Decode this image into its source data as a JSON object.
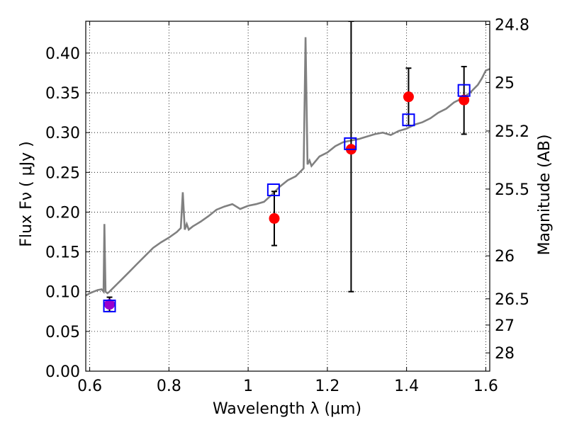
{
  "chart_data": {
    "type": "scatter",
    "title": "",
    "xlabel": "Wavelength  λ (μm)",
    "ylabel": "Flux  Fν  ( μJy )",
    "ylabel_right": "Magnitude (AB)",
    "xlim": [
      0.59,
      1.61
    ],
    "ylim": [
      0.0,
      0.44
    ],
    "grid": true,
    "xticks": [
      {
        "v": 0.6,
        "label": "0.6"
      },
      {
        "v": 0.8,
        "label": "0.8"
      },
      {
        "v": 1.0,
        "label": "1"
      },
      {
        "v": 1.2,
        "label": "1.2"
      },
      {
        "v": 1.4,
        "label": "1.4"
      },
      {
        "v": 1.6,
        "label": "1.6"
      }
    ],
    "yticks": [
      {
        "v": 0.0,
        "label": "0.00"
      },
      {
        "v": 0.05,
        "label": "0.05"
      },
      {
        "v": 0.1,
        "label": "0.10"
      },
      {
        "v": 0.15,
        "label": "0.15"
      },
      {
        "v": 0.2,
        "label": "0.20"
      },
      {
        "v": 0.25,
        "label": "0.25"
      },
      {
        "v": 0.3,
        "label": "0.30"
      },
      {
        "v": 0.35,
        "label": "0.35"
      },
      {
        "v": 0.4,
        "label": "0.40"
      }
    ],
    "right_ticks": [
      {
        "label": "24.8",
        "flux": 0.436
      },
      {
        "label": "25",
        "flux": 0.363
      },
      {
        "label": "25.2",
        "flux": 0.302
      },
      {
        "label": "25.5",
        "flux": 0.229
      },
      {
        "label": "26",
        "flux": 0.145
      },
      {
        "label": "26.5",
        "flux": 0.091
      },
      {
        "label": "27",
        "flux": 0.058
      },
      {
        "label": "28",
        "flux": 0.023
      }
    ],
    "series": [
      {
        "kind": "line",
        "color": "#808080",
        "x": [
          0.59,
          0.6,
          0.61,
          0.62,
          0.63,
          0.635,
          0.637,
          0.64,
          0.645,
          0.65,
          0.66,
          0.67,
          0.68,
          0.7,
          0.72,
          0.74,
          0.76,
          0.78,
          0.8,
          0.82,
          0.83,
          0.835,
          0.84,
          0.845,
          0.85,
          0.86,
          0.87,
          0.88,
          0.9,
          0.92,
          0.94,
          0.96,
          0.98,
          1.0,
          1.02,
          1.04,
          1.06,
          1.08,
          1.1,
          1.12,
          1.13,
          1.14,
          1.145,
          1.15,
          1.155,
          1.16,
          1.18,
          1.2,
          1.22,
          1.24,
          1.26,
          1.28,
          1.3,
          1.32,
          1.34,
          1.36,
          1.38,
          1.4,
          1.42,
          1.44,
          1.46,
          1.48,
          1.5,
          1.52,
          1.54,
          1.56,
          1.58,
          1.59,
          1.6,
          1.61
        ],
        "y": [
          0.095,
          0.098,
          0.1,
          0.102,
          0.103,
          0.1,
          0.185,
          0.1,
          0.098,
          0.1,
          0.105,
          0.11,
          0.115,
          0.125,
          0.135,
          0.145,
          0.155,
          0.162,
          0.168,
          0.175,
          0.18,
          0.225,
          0.178,
          0.185,
          0.178,
          0.182,
          0.185,
          0.188,
          0.195,
          0.203,
          0.207,
          0.21,
          0.204,
          0.208,
          0.21,
          0.213,
          0.222,
          0.232,
          0.24,
          0.245,
          0.25,
          0.255,
          0.42,
          0.26,
          0.265,
          0.258,
          0.27,
          0.275,
          0.283,
          0.288,
          0.29,
          0.292,
          0.295,
          0.298,
          0.3,
          0.297,
          0.302,
          0.305,
          0.31,
          0.313,
          0.318,
          0.325,
          0.33,
          0.338,
          0.343,
          0.35,
          0.36,
          0.368,
          0.378,
          0.38
        ]
      },
      {
        "kind": "markers",
        "name": "",
        "marker": "circle",
        "color": "#ff0000",
        "points": [
          {
            "x": 1.066,
            "y": 0.192,
            "err": 0.034
          },
          {
            "x": 1.26,
            "y": 0.279,
            "err": null
          },
          {
            "x": 1.405,
            "y": 0.345,
            "err": 0.036
          },
          {
            "x": 1.545,
            "y": 0.341,
            "err": 0.043
          }
        ]
      },
      {
        "kind": "markers",
        "name": "",
        "marker": "circle",
        "color": "#9900cc",
        "points": [
          {
            "x": 0.65,
            "y": 0.084,
            "err": 0.009
          }
        ]
      },
      {
        "kind": "markers",
        "name": "",
        "marker": "square-open",
        "color": "#0000ff",
        "points": [
          {
            "x": 0.65,
            "y": 0.082
          },
          {
            "x": 1.064,
            "y": 0.228
          },
          {
            "x": 1.258,
            "y": 0.286
          },
          {
            "x": 1.405,
            "y": 0.316
          },
          {
            "x": 1.545,
            "y": 0.353
          }
        ]
      }
    ],
    "errorbars": [
      {
        "x": 0.65,
        "low": 0.075,
        "high": 0.093
      },
      {
        "x": 1.066,
        "low": 0.158,
        "high": 0.226
      },
      {
        "x": 1.26,
        "low": 0.1,
        "high": 0.44
      },
      {
        "x": 1.405,
        "low": 0.309,
        "high": 0.381
      },
      {
        "x": 1.545,
        "low": 0.298,
        "high": 0.383
      }
    ]
  }
}
